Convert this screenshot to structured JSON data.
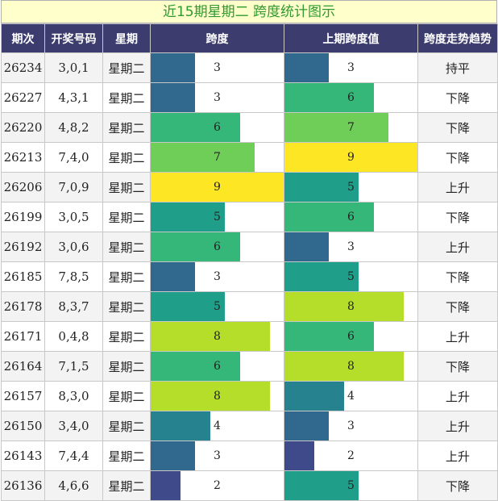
{
  "title": "近15期星期二 跨度统计图示",
  "headers": [
    "期次",
    "开奖号码",
    "星期",
    "跨度",
    "上期跨度值",
    "跨度走势趋势"
  ],
  "max_span": 9,
  "span_colors": {
    "2": "#3e4a89",
    "3": "#31688e",
    "4": "#26828e",
    "5": "#1f9e89",
    "6": "#35b779",
    "7": "#6ece58",
    "8": "#b5de2b",
    "9": "#fde725"
  },
  "rows": [
    {
      "issue": "26234",
      "numbers": "3,0,1",
      "weekday": "星期二",
      "span": 3,
      "prev_span": 3,
      "trend": "持平"
    },
    {
      "issue": "26227",
      "numbers": "4,3,1",
      "weekday": "星期二",
      "span": 3,
      "prev_span": 6,
      "trend": "下降"
    },
    {
      "issue": "26220",
      "numbers": "4,8,2",
      "weekday": "星期二",
      "span": 6,
      "prev_span": 7,
      "trend": "下降"
    },
    {
      "issue": "26213",
      "numbers": "7,4,0",
      "weekday": "星期二",
      "span": 7,
      "prev_span": 9,
      "trend": "下降"
    },
    {
      "issue": "26206",
      "numbers": "7,0,9",
      "weekday": "星期二",
      "span": 9,
      "prev_span": 5,
      "trend": "上升"
    },
    {
      "issue": "26199",
      "numbers": "3,0,5",
      "weekday": "星期二",
      "span": 5,
      "prev_span": 6,
      "trend": "下降"
    },
    {
      "issue": "26192",
      "numbers": "3,0,6",
      "weekday": "星期二",
      "span": 6,
      "prev_span": 3,
      "trend": "上升"
    },
    {
      "issue": "26185",
      "numbers": "7,8,5",
      "weekday": "星期二",
      "span": 3,
      "prev_span": 5,
      "trend": "下降"
    },
    {
      "issue": "26178",
      "numbers": "8,3,7",
      "weekday": "星期二",
      "span": 5,
      "prev_span": 8,
      "trend": "下降"
    },
    {
      "issue": "26171",
      "numbers": "0,4,8",
      "weekday": "星期二",
      "span": 8,
      "prev_span": 6,
      "trend": "上升"
    },
    {
      "issue": "26164",
      "numbers": "7,1,5",
      "weekday": "星期二",
      "span": 6,
      "prev_span": 8,
      "trend": "下降"
    },
    {
      "issue": "26157",
      "numbers": "8,3,0",
      "weekday": "星期二",
      "span": 8,
      "prev_span": 4,
      "trend": "上升"
    },
    {
      "issue": "26150",
      "numbers": "3,4,0",
      "weekday": "星期二",
      "span": 4,
      "prev_span": 3,
      "trend": "上升"
    },
    {
      "issue": "26143",
      "numbers": "7,4,4",
      "weekday": "星期二",
      "span": 3,
      "prev_span": 2,
      "trend": "上升"
    },
    {
      "issue": "26136",
      "numbers": "4,6,6",
      "weekday": "星期二",
      "span": 2,
      "prev_span": 5,
      "trend": "下降"
    }
  ]
}
